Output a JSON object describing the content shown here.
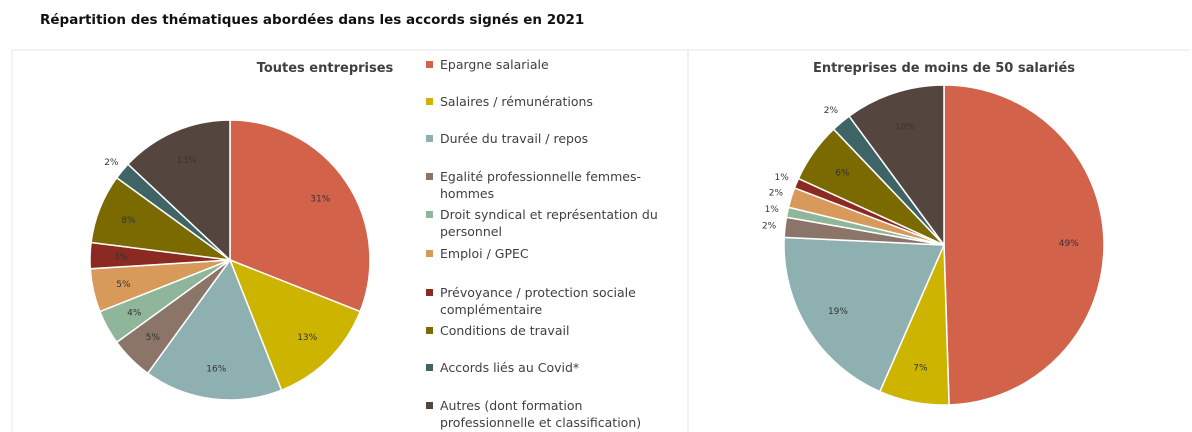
{
  "title": "Répartition des thématiques abordées dans les accords signés en 2021",
  "legend": {
    "labels": [
      "Epargne salariale",
      "Salaires / rémunérations",
      "Durée du travail / repos",
      "Egalité professionnelle femmes-hommes",
      "Droit syndical et représentation du personnel",
      "Emploi / GPEC",
      "Prévoyance / protection sociale complémentaire",
      "Conditions de travail",
      "Accords liés au Covid*",
      "Autres (dont formation professionnelle et classification)"
    ],
    "colors": [
      "#d2634a",
      "#cdb400",
      "#8fb0b0",
      "#8b7468",
      "#8fb69a",
      "#d89a5a",
      "#8b2a22",
      "#7a6a00",
      "#3f6466",
      "#54463f"
    ]
  },
  "chart_data": [
    {
      "type": "pie",
      "title": "Toutes entreprises",
      "values": [
        31,
        13,
        16,
        5,
        4,
        5,
        3,
        8,
        2,
        13
      ],
      "value_labels": [
        "31%",
        "13%",
        "16%",
        "5%",
        "4%",
        "5%",
        "3%",
        "8%",
        "2%",
        "13%"
      ]
    },
    {
      "type": "pie",
      "title": "Entreprises de moins de 50 salariés",
      "values": [
        49,
        7,
        19,
        2,
        1,
        2,
        1,
        6,
        2,
        10
      ],
      "value_labels": [
        "49%",
        "7%",
        "19%",
        "2%",
        "1%",
        "2%",
        "1%",
        "6%",
        "2%",
        "10%"
      ]
    }
  ]
}
